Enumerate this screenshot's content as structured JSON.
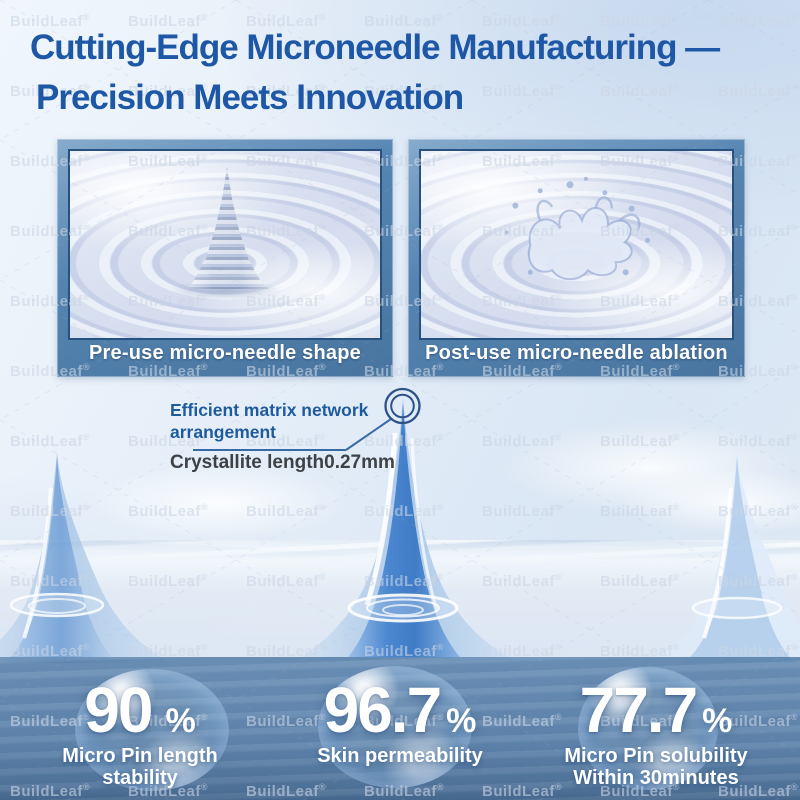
{
  "watermark": {
    "text": "BuildLeaf",
    "symbol": "®"
  },
  "title": {
    "line1": "Cutting-Edge Microneedle Manufacturing —",
    "line2": "Precision Meets Innovation"
  },
  "panels": {
    "left_caption": "Pre-use micro-needle shape",
    "right_caption": "Post-use micro-needle ablation"
  },
  "callout": {
    "line1": "Efficient matrix network",
    "line2": "arrangement",
    "measurement": "Crystallite length0.27mm"
  },
  "stats": [
    {
      "value": "90",
      "unit": "%",
      "line1": "Micro Pin length",
      "line2": "stability"
    },
    {
      "value": "96.7",
      "unit": "%",
      "line1": "Skin permeability",
      "line2": ""
    },
    {
      "value": "77.7",
      "unit": "%",
      "line1": "Micro Pin solubility",
      "line2": "Within 30minutes"
    }
  ],
  "colors": {
    "title_blue": "#1d57a5",
    "frame_blue": "#4e7dab",
    "callout_blue": "#1d5a9e",
    "measure_gray": "#3e4246",
    "overlay_blue": "#5e86b0",
    "stat_text": "#ffffff"
  }
}
